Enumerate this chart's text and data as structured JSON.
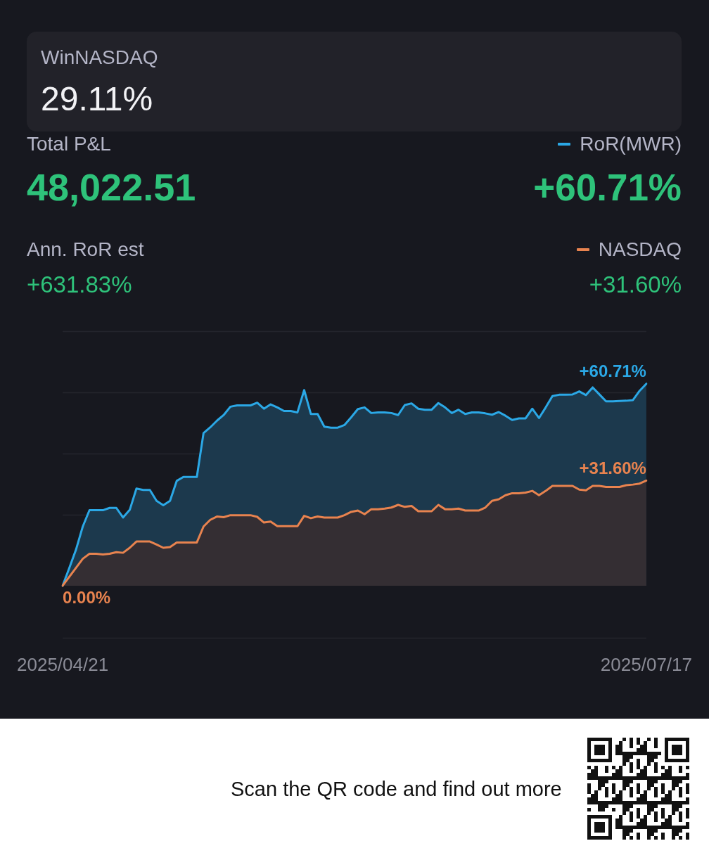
{
  "chart_data": {
    "type": "area",
    "annotations": [
      "WinNASDAQ",
      "29.11%",
      "Total P&L",
      "48,022.51",
      "+60.71%",
      "Ann. RoR est",
      "+631.83%",
      "+31.60%",
      "Scan the QR code and find out more"
    ],
    "categories": [
      "2025/04/21",
      null,
      null,
      null,
      null,
      null,
      null,
      null,
      null,
      null,
      null,
      null,
      null,
      null,
      null,
      null,
      null,
      null,
      null,
      null,
      null,
      null,
      null,
      null,
      null,
      null,
      null,
      null,
      null,
      null,
      null,
      null,
      null,
      null,
      null,
      null,
      null,
      null,
      null,
      null,
      null,
      null,
      null,
      null,
      null,
      null,
      null,
      null,
      null,
      null,
      null,
      null,
      null,
      null,
      null,
      null,
      null,
      null,
      null,
      null,
      null,
      null,
      null,
      null,
      null,
      null,
      null,
      null,
      null,
      null,
      null,
      null,
      null,
      null,
      null,
      null,
      null,
      null,
      null,
      null,
      null,
      null,
      null,
      null,
      null,
      null,
      null,
      "2025/07/17"
    ],
    "series": [
      {
        "name": "RoR(MWR)",
        "color": "#2ba8e6",
        "values": [
          0,
          5.4,
          10.9,
          17.8,
          22.7,
          22.7,
          22.7,
          23.4,
          23.4,
          20.5,
          22.8,
          29.2,
          28.8,
          28.8,
          25.5,
          24.2,
          25.5,
          31.5,
          32.7,
          32.7,
          32.7,
          45.9,
          47.6,
          49.6,
          51.3,
          53.8,
          54.2,
          54.2,
          54.2,
          55.0,
          53.2,
          54.5,
          53.6,
          52.5,
          52.5,
          52.1,
          58.8,
          51.6,
          51.6,
          47.8,
          47.5,
          47.5,
          48.3,
          50.6,
          53.1,
          53.6,
          51.9,
          52.1,
          52.1,
          51.9,
          51.3,
          54.3,
          54.8,
          53.2,
          52.9,
          52.9,
          54.9,
          53.6,
          51.9,
          52.9,
          51.6,
          52.1,
          52.1,
          51.8,
          51.4,
          52.2,
          51.1,
          49.8,
          50.3,
          50.3,
          53.2,
          50.4,
          53.6,
          57.0,
          57.4,
          57.4,
          57.5,
          58.4,
          57.3,
          59.6,
          57.5,
          55.4,
          55.4,
          55.5,
          55.6,
          55.8,
          58.6,
          60.71
        ],
        "value_labels": [
          null,
          null,
          null,
          null,
          null,
          null,
          null,
          null,
          null,
          null,
          null,
          null,
          null,
          null,
          null,
          null,
          null,
          null,
          null,
          null,
          null,
          null,
          null,
          null,
          null,
          null,
          null,
          null,
          null,
          null,
          null,
          null,
          null,
          null,
          null,
          null,
          null,
          null,
          null,
          null,
          null,
          null,
          null,
          null,
          null,
          null,
          null,
          null,
          null,
          null,
          null,
          null,
          null,
          null,
          null,
          null,
          null,
          null,
          null,
          null,
          null,
          null,
          null,
          null,
          null,
          null,
          null,
          null,
          null,
          null,
          null,
          null,
          null,
          null,
          null,
          null,
          null,
          null,
          null,
          null,
          null,
          null,
          null,
          null,
          null,
          null,
          null,
          "+60.71%"
        ]
      },
      {
        "name": "NASDAQ",
        "color": "#e8834f",
        "values": [
          0,
          2.7,
          5.4,
          8.1,
          9.6,
          9.6,
          9.4,
          9.6,
          10.1,
          9.9,
          11.4,
          13.3,
          13.3,
          13.3,
          12.4,
          11.4,
          11.6,
          13.0,
          13.0,
          13.0,
          13.0,
          17.8,
          19.8,
          20.8,
          20.6,
          21.2,
          21.2,
          21.2,
          21.2,
          20.7,
          19.0,
          19.3,
          17.9,
          17.9,
          17.9,
          17.9,
          21.0,
          20.3,
          20.8,
          20.5,
          20.5,
          20.5,
          21.2,
          22.2,
          22.6,
          21.5,
          23.0,
          23.0,
          23.2,
          23.5,
          24.3,
          23.7,
          24.0,
          22.4,
          22.4,
          22.4,
          24.3,
          23.0,
          23.0,
          23.2,
          22.6,
          22.6,
          22.6,
          23.5,
          25.5,
          26.0,
          27.2,
          27.8,
          27.8,
          28.0,
          28.5,
          27.2,
          28.5,
          30.0,
          30.0,
          30.0,
          30.0,
          28.9,
          28.7,
          30.0,
          30.0,
          29.7,
          29.7,
          29.7,
          30.2,
          30.4,
          30.7,
          31.6
        ],
        "value_labels": [
          "0.00%",
          null,
          null,
          null,
          null,
          null,
          null,
          null,
          null,
          null,
          null,
          null,
          null,
          null,
          null,
          null,
          null,
          null,
          null,
          null,
          null,
          null,
          null,
          null,
          null,
          null,
          null,
          null,
          null,
          null,
          null,
          null,
          null,
          null,
          null,
          null,
          null,
          null,
          null,
          null,
          null,
          null,
          null,
          null,
          null,
          null,
          null,
          null,
          null,
          null,
          null,
          null,
          null,
          null,
          null,
          null,
          null,
          null,
          null,
          null,
          null,
          null,
          null,
          null,
          null,
          null,
          null,
          null,
          null,
          null,
          null,
          null,
          null,
          null,
          null,
          null,
          null,
          null,
          null,
          null,
          null,
          null,
          null,
          null,
          null,
          null,
          null,
          "+31.60%"
        ]
      }
    ],
    "grid": "y",
    "legend": "top right",
    "marker": "none"
  }
}
